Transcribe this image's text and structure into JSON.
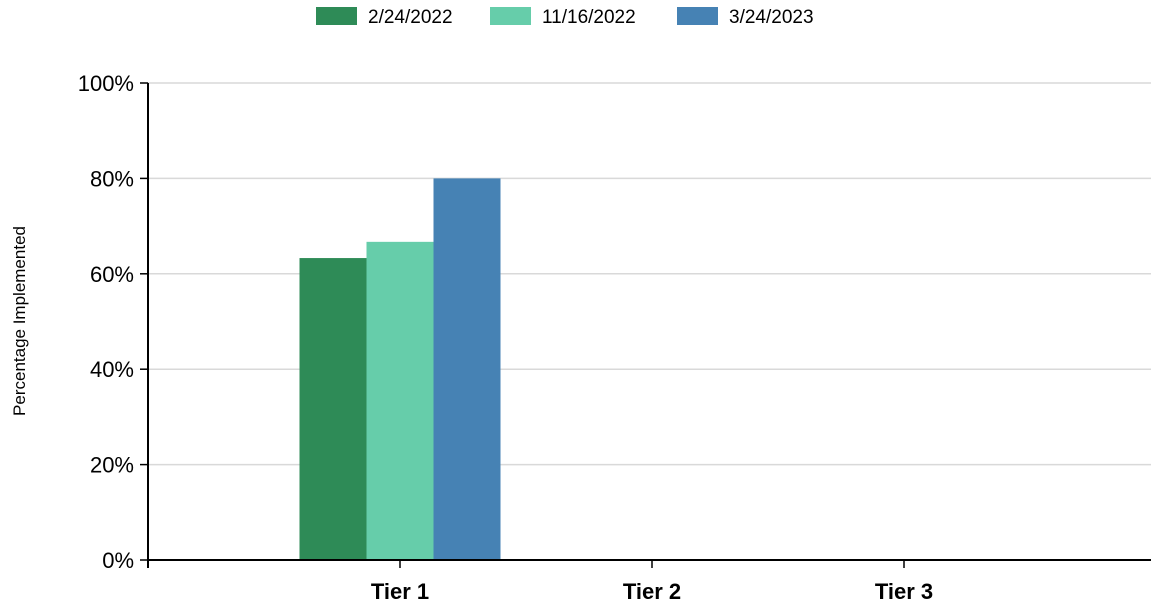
{
  "chart_data": {
    "type": "bar",
    "categories": [
      "Tier 1",
      "Tier 2",
      "Tier 3"
    ],
    "series": [
      {
        "name": "2/24/2022",
        "values": [
          63.3,
          0,
          0
        ],
        "color": "#2e8b57"
      },
      {
        "name": "11/16/2022",
        "values": [
          66.7,
          0,
          0
        ],
        "color": "#66cdaa"
      },
      {
        "name": "3/24/2023",
        "values": [
          80,
          0,
          0
        ],
        "color": "#4682b4"
      }
    ],
    "xlabel": "",
    "ylabel": "Percentage Implemented",
    "ylim": [
      0,
      100
    ],
    "yticks": [
      0,
      20,
      40,
      60,
      80,
      100
    ],
    "ytick_labels": [
      "0%",
      "20%",
      "40%",
      "60%",
      "80%",
      "100%"
    ],
    "grid": true,
    "legend_position": "top-center"
  }
}
